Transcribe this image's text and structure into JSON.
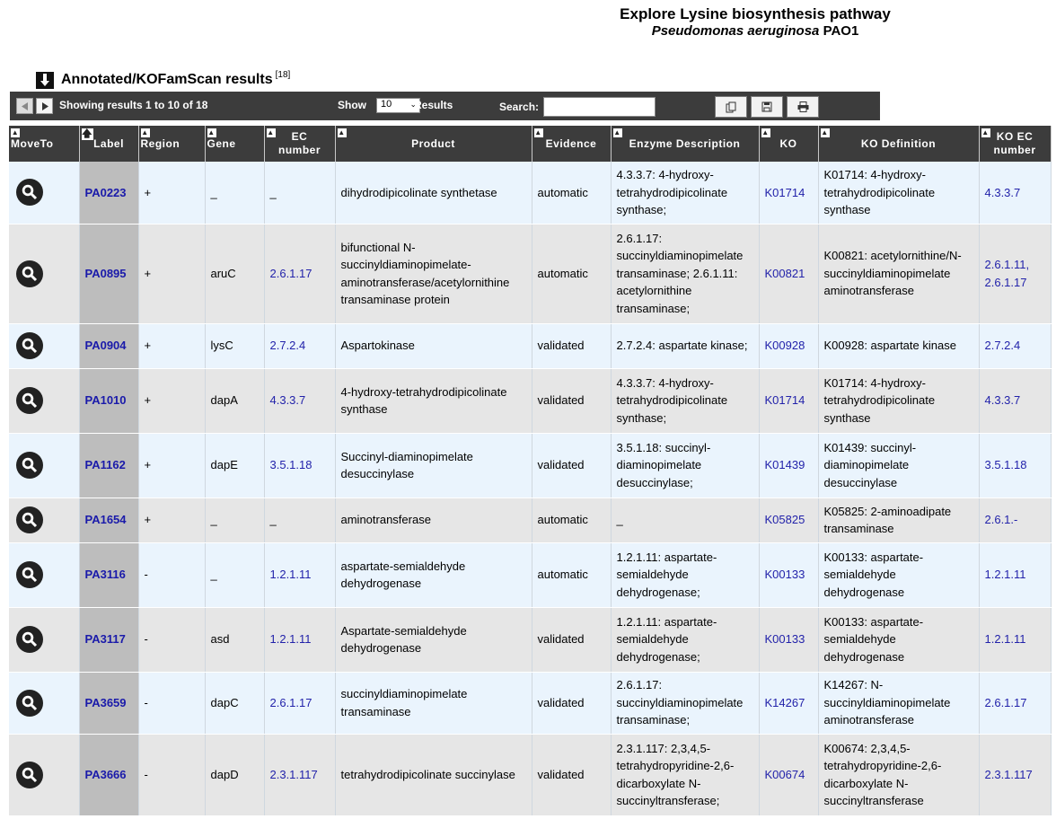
{
  "header": {
    "title": "Explore Lysine biosynthesis pathway",
    "organism_italic": "Pseudomonas aeruginosa",
    "strain": "PAO1"
  },
  "section": {
    "title": "Annotated/KOFamScan results",
    "count": "[18]",
    "icon": "down-arrow-icon"
  },
  "toolbar": {
    "showing": "Showing results 1 to 10 of 18",
    "show_label": "Show",
    "page_size": "10",
    "results_label": "Results",
    "search_label": "Search:",
    "search_value": "",
    "icons": [
      "prev-page-icon",
      "next-page-icon",
      "copy-icon",
      "save-icon",
      "print-icon"
    ]
  },
  "columns": [
    "MoveTo",
    "Label",
    "Region",
    "Gene",
    "EC number",
    "Product",
    "Evidence",
    "Enzyme Description",
    "KO",
    "KO Definition",
    "KO EC number"
  ],
  "rows": [
    {
      "label": "PA0223",
      "region": "+",
      "gene": "_",
      "ec": "_",
      "product": "dihydrodipicolinate synthetase",
      "evidence": "automatic",
      "enzyme": "4.3.3.7: 4-hydroxy-tetrahydrodipicolinate synthase;",
      "ko": "K01714",
      "ko_def": "K01714: 4-hydroxy-tetrahydrodipicolinate synthase",
      "ko_ec": "4.3.3.7"
    },
    {
      "label": "PA0895",
      "region": "+",
      "gene": "aruC",
      "ec": "2.6.1.17",
      "product": "bifunctional N-succinyldiaminopimelate-aminotransferase/acetylornithine transaminase protein",
      "evidence": "automatic",
      "enzyme": "2.6.1.17: succinyldiaminopimelate transaminase; 2.6.1.11: acetylornithine transaminase;",
      "ko": "K00821",
      "ko_def": "K00821: acetylornithine/N-succinyldiaminopimelate aminotransferase",
      "ko_ec": "2.6.1.11, 2.6.1.17"
    },
    {
      "label": "PA0904",
      "region": "+",
      "gene": "lysC",
      "ec": "2.7.2.4",
      "product": "Aspartokinase",
      "evidence": "validated",
      "enzyme": "2.7.2.4: aspartate kinase;",
      "ko": "K00928",
      "ko_def": "K00928: aspartate kinase",
      "ko_ec": "2.7.2.4"
    },
    {
      "label": "PA1010",
      "region": "+",
      "gene": "dapA",
      "ec": "4.3.3.7",
      "product": "4-hydroxy-tetrahydrodipicolinate synthase",
      "evidence": "validated",
      "enzyme": "4.3.3.7: 4-hydroxy-tetrahydrodipicolinate synthase;",
      "ko": "K01714",
      "ko_def": "K01714: 4-hydroxy-tetrahydrodipicolinate synthase",
      "ko_ec": "4.3.3.7"
    },
    {
      "label": "PA1162",
      "region": "+",
      "gene": "dapE",
      "ec": "3.5.1.18",
      "product": "Succinyl-diaminopimelate desuccinylase",
      "evidence": "validated",
      "enzyme": "3.5.1.18: succinyl-diaminopimelate desuccinylase;",
      "ko": "K01439",
      "ko_def": "K01439: succinyl-diaminopimelate desuccinylase",
      "ko_ec": "3.5.1.18"
    },
    {
      "label": "PA1654",
      "region": "+",
      "gene": "_",
      "ec": "_",
      "product": "aminotransferase",
      "evidence": "automatic",
      "enzyme": "_",
      "ko": "K05825",
      "ko_def": "K05825: 2-aminoadipate transaminase",
      "ko_ec": "2.6.1.-"
    },
    {
      "label": "PA3116",
      "region": "-",
      "gene": "_",
      "ec": "1.2.1.11",
      "product": "aspartate-semialdehyde dehydrogenase",
      "evidence": "automatic",
      "enzyme": "1.2.1.11: aspartate-semialdehyde dehydrogenase;",
      "ko": "K00133",
      "ko_def": "K00133: aspartate-semialdehyde dehydrogenase",
      "ko_ec": "1.2.1.11"
    },
    {
      "label": "PA3117",
      "region": "-",
      "gene": "asd",
      "ec": "1.2.1.11",
      "product": "Aspartate-semialdehyde dehydrogenase",
      "evidence": "validated",
      "enzyme": "1.2.1.11: aspartate-semialdehyde dehydrogenase;",
      "ko": "K00133",
      "ko_def": "K00133: aspartate-semialdehyde dehydrogenase",
      "ko_ec": "1.2.1.11"
    },
    {
      "label": "PA3659",
      "region": "-",
      "gene": "dapC",
      "ec": "2.6.1.17",
      "product": "succinyldiaminopimelate transaminase",
      "evidence": "validated",
      "enzyme": "2.6.1.17: succinyldiaminopimelate transaminase;",
      "ko": "K14267",
      "ko_def": "K14267: N-succinyldiaminopimelate aminotransferase",
      "ko_ec": "2.6.1.17"
    },
    {
      "label": "PA3666",
      "region": "-",
      "gene": "dapD",
      "ec": "2.3.1.117",
      "product": "tetrahydrodipicolinate succinylase",
      "evidence": "validated",
      "enzyme": "2.3.1.117: 2,3,4,5-tetrahydropyridine-2,6-dicarboxylate N-succinyltransferase;",
      "ko": "K00674",
      "ko_def": "K00674: 2,3,4,5-tetrahydropyridine-2,6-dicarboxylate N-succinyltransferase",
      "ko_ec": "2.3.1.117"
    }
  ]
}
